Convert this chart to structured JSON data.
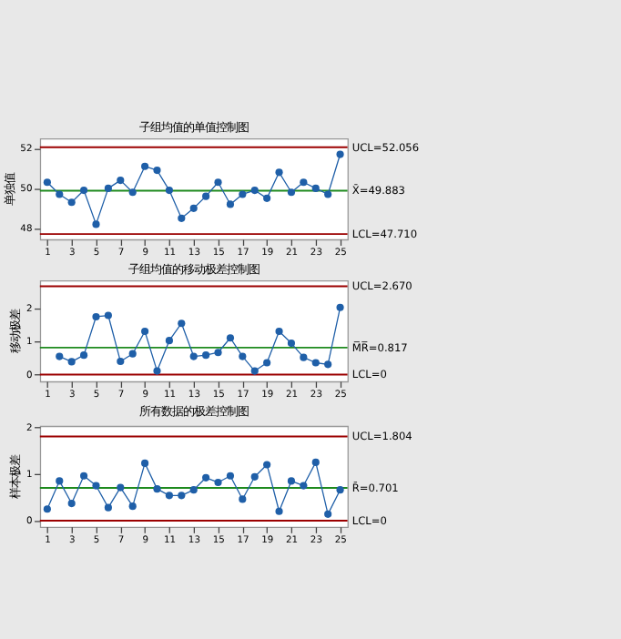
{
  "chart_data": [
    {
      "type": "line",
      "title": "子组均值的单值控制图",
      "ylabel": "单独值",
      "x": [
        1,
        2,
        3,
        4,
        5,
        6,
        7,
        8,
        9,
        10,
        11,
        12,
        13,
        14,
        15,
        16,
        17,
        18,
        19,
        20,
        21,
        22,
        23,
        24,
        25
      ],
      "series": [
        {
          "color": "#1f5fa8",
          "values": [
            50.3,
            49.7,
            49.3,
            49.9,
            48.2,
            50.0,
            50.4,
            49.8,
            51.1,
            50.9,
            49.9,
            48.5,
            49.0,
            49.6,
            50.3,
            49.2,
            49.7,
            49.9,
            49.5,
            50.8,
            49.8,
            50.3,
            50.0,
            49.7,
            51.7
          ]
        }
      ],
      "xlim": [
        0.4,
        25.6
      ],
      "xticks": [
        1,
        3,
        5,
        7,
        9,
        11,
        13,
        15,
        17,
        19,
        21,
        23,
        25
      ],
      "ylim": [
        47.45,
        52.5
      ],
      "yticks": [
        48,
        50,
        52
      ],
      "ref_lines": [
        {
          "axis": "y",
          "value": 52.056,
          "label": "UCL=52.056",
          "color": "#9b0000"
        },
        {
          "axis": "y",
          "value": 49.883,
          "label": "X̄=49.883",
          "color": "#1e8a1e"
        },
        {
          "axis": "y",
          "value": 47.71,
          "label": "LCL=47.710",
          "color": "#9b0000"
        }
      ],
      "marker": "circle",
      "grid": false,
      "legend": false
    },
    {
      "type": "line",
      "title": "子组均值的移动极差控制图",
      "ylabel": "移动极差",
      "series": [
        {
          "color": "#1f5fa8",
          "x": [
            2,
            3,
            4,
            5,
            6,
            7,
            8,
            9,
            10,
            11,
            12,
            13,
            14,
            15,
            16,
            17,
            18,
            19,
            20,
            21,
            22,
            23,
            24,
            25
          ],
          "values": [
            0.55,
            0.39,
            0.59,
            1.75,
            1.79,
            0.4,
            0.63,
            1.31,
            0.11,
            1.03,
            1.55,
            0.55,
            0.59,
            0.67,
            1.11,
            0.55,
            0.11,
            0.36,
            1.31,
            0.95,
            0.52,
            0.36,
            0.31,
            2.03
          ]
        }
      ],
      "xlim": [
        0.4,
        25.6
      ],
      "xticks": [
        1,
        3,
        5,
        7,
        9,
        11,
        13,
        15,
        17,
        19,
        21,
        23,
        25
      ],
      "ylim": [
        -0.2,
        2.85
      ],
      "yticks": [
        0,
        1,
        2
      ],
      "ref_lines": [
        {
          "axis": "y",
          "value": 2.67,
          "label": "UCL=2.670",
          "color": "#9b0000"
        },
        {
          "axis": "y",
          "value": 0.817,
          "label": "M̅R̅=0.817",
          "color": "#1e8a1e"
        },
        {
          "axis": "y",
          "value": 0,
          "label": "LCL=0",
          "color": "#9b0000"
        }
      ],
      "marker": "circle",
      "grid": false,
      "legend": false
    },
    {
      "type": "line",
      "title": "所有数据的极差控制图",
      "ylabel": "样本极差",
      "x": [
        1,
        2,
        3,
        4,
        5,
        6,
        7,
        8,
        9,
        10,
        11,
        12,
        13,
        14,
        15,
        16,
        17,
        18,
        19,
        20,
        21,
        22,
        23,
        24,
        25
      ],
      "series": [
        {
          "color": "#1f5fa8",
          "values": [
            0.25,
            0.85,
            0.37,
            0.96,
            0.75,
            0.28,
            0.71,
            0.31,
            1.23,
            0.68,
            0.54,
            0.54,
            0.66,
            0.92,
            0.82,
            0.96,
            0.46,
            0.94,
            1.2,
            0.2,
            0.85,
            0.75,
            1.25,
            0.14,
            0.66
          ]
        }
      ],
      "xlim": [
        0.4,
        25.6
      ],
      "xticks": [
        1,
        3,
        5,
        7,
        9,
        11,
        13,
        15,
        17,
        19,
        21,
        23,
        25
      ],
      "ylim": [
        -0.13,
        2.03
      ],
      "yticks": [
        0,
        1,
        2
      ],
      "ref_lines": [
        {
          "axis": "y",
          "value": 1.804,
          "label": "UCL=1.804",
          "color": "#9b0000"
        },
        {
          "axis": "y",
          "value": 0.701,
          "label": "R̄=0.701",
          "color": "#1e8a1e"
        },
        {
          "axis": "y",
          "value": 0,
          "label": "LCL=0",
          "color": "#9b0000"
        }
      ],
      "marker": "circle",
      "grid": false,
      "legend": false
    }
  ]
}
